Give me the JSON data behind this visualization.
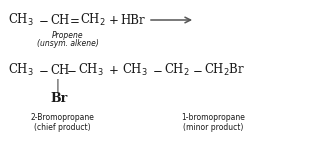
{
  "background_color": "#ffffff",
  "figsize": [
    3.15,
    1.53
  ],
  "dpi": 100,
  "text_color": "#1a1a1a",
  "arrow_color": "#555555",
  "fs_main": 8.5,
  "fs_label": 5.5,
  "fs_br": 9.0,
  "label_2bromo": "2-Bromopropane",
  "label_2bromo_sub": "(chief product)",
  "label_1bromo": "1-bromopropane",
  "label_1bromo_sub": "(minor product)",
  "propene_line1": "Propene",
  "propene_line2": "(unsym. alkene)"
}
